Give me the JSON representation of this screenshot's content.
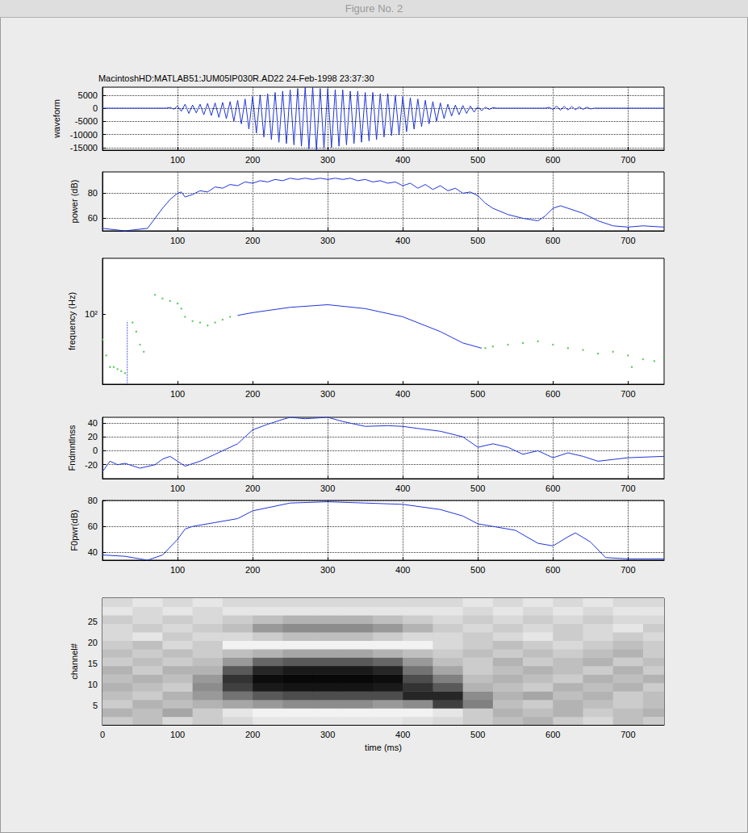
{
  "window": {
    "title": "Figure No. 2"
  },
  "chart_data": [
    {
      "type": "line",
      "title": "MacintoshHD:MATLAB51:JUM05IP030R.AD22 24-Feb-1998 23:37:30",
      "y_label": "waveform",
      "x": [
        0,
        85,
        90,
        95,
        100,
        105,
        110,
        115,
        120,
        125,
        130,
        135,
        140,
        145,
        150,
        155,
        160,
        165,
        170,
        175,
        180,
        185,
        190,
        195,
        200,
        205,
        210,
        215,
        220,
        225,
        230,
        235,
        240,
        245,
        250,
        255,
        260,
        265,
        270,
        275,
        280,
        285,
        290,
        295,
        300,
        305,
        310,
        315,
        320,
        325,
        330,
        335,
        340,
        345,
        350,
        355,
        360,
        365,
        370,
        375,
        380,
        385,
        390,
        395,
        400,
        405,
        410,
        415,
        420,
        425,
        430,
        435,
        440,
        445,
        450,
        455,
        460,
        465,
        470,
        475,
        480,
        485,
        490,
        495,
        500,
        505,
        510,
        515,
        520,
        525,
        590,
        595,
        600,
        605,
        610,
        615,
        620,
        625,
        630,
        635,
        640,
        645,
        650,
        655,
        748
      ],
      "values": [
        0,
        0,
        300,
        -400,
        800,
        -1200,
        1500,
        -2000,
        1200,
        -1800,
        1500,
        -2500,
        1800,
        -2800,
        2000,
        -3500,
        2200,
        -4000,
        2500,
        -5000,
        3000,
        -6000,
        3500,
        -8000,
        4500,
        -9500,
        5000,
        -11000,
        5500,
        -12000,
        6000,
        -13000,
        6500,
        -13500,
        7000,
        -14000,
        7500,
        -14500,
        8000,
        -15500,
        8000,
        -16000,
        7500,
        -15500,
        7500,
        -15000,
        7000,
        -14500,
        7000,
        -14000,
        6500,
        -13500,
        6500,
        -13000,
        6000,
        -12500,
        6000,
        -12000,
        5500,
        -11000,
        5500,
        -10500,
        5000,
        -10000,
        4500,
        -9000,
        4000,
        -8000,
        3500,
        -7000,
        3000,
        -6000,
        2500,
        -5000,
        2000,
        -4000,
        1500,
        -3000,
        1200,
        -2500,
        1000,
        -2000,
        800,
        -1500,
        600,
        -1000,
        400,
        -500,
        200,
        0,
        0,
        300,
        -500,
        800,
        -800,
        700,
        -700,
        600,
        -600,
        500,
        -500,
        400,
        -300,
        0,
        0
      ],
      "color": "#1f35d9",
      "xlim": [
        0,
        748
      ],
      "xticks": [
        100,
        200,
        300,
        400,
        500,
        600,
        700
      ],
      "ylim": [
        -16000,
        8000
      ],
      "yticks": [
        -15000,
        -10000,
        -5000,
        0,
        5000
      ],
      "grid": true
    },
    {
      "type": "line",
      "y_label": "power (dB)",
      "x": [
        0,
        30,
        60,
        70,
        80,
        90,
        100,
        105,
        110,
        120,
        130,
        140,
        150,
        160,
        170,
        180,
        190,
        200,
        210,
        220,
        230,
        240,
        250,
        260,
        270,
        280,
        290,
        300,
        310,
        320,
        330,
        340,
        350,
        360,
        370,
        380,
        390,
        400,
        410,
        420,
        430,
        440,
        450,
        460,
        470,
        480,
        490,
        500,
        510,
        520,
        540,
        560,
        580,
        590,
        600,
        610,
        620,
        640,
        660,
        680,
        700,
        720,
        748
      ],
      "values": [
        52,
        50,
        52,
        60,
        68,
        75,
        80,
        81,
        77,
        79,
        82,
        81,
        85,
        84,
        87,
        86,
        89,
        88,
        90,
        89,
        91,
        90,
        92,
        91,
        92,
        91,
        92,
        91,
        92,
        91,
        92,
        90,
        91,
        89,
        90,
        88,
        89,
        86,
        88,
        84,
        87,
        83,
        86,
        82,
        84,
        80,
        81,
        78,
        72,
        68,
        63,
        60,
        58,
        62,
        68,
        70,
        68,
        64,
        58,
        54,
        53,
        54,
        53
      ],
      "color": "#1f35d9",
      "xlim": [
        0,
        748
      ],
      "xticks": [
        100,
        200,
        300,
        400,
        500,
        600,
        700
      ],
      "ylim": [
        50,
        97
      ],
      "yticks": [
        60,
        80
      ],
      "grid": true
    },
    {
      "type": "line",
      "y_label": "frequency (Hz)",
      "log": "y",
      "series": [
        {
          "type": "line",
          "color": "#1f35d9",
          "line_style": "solid",
          "x": [
            180,
            200,
            250,
            300,
            350,
            400,
            450,
            480,
            505
          ],
          "values": [
            99,
            101,
            105,
            107,
            104,
            98,
            88,
            81,
            78
          ]
        },
        {
          "type": "line",
          "color": "#1f35d9",
          "line_style": "dotted",
          "x": [
            33,
            33
          ],
          "values": [
            60,
            95
          ]
        },
        {
          "type": "scatter",
          "color": "#44c044",
          "marker": "dot",
          "x": [
            0,
            5,
            10,
            15,
            20,
            25,
            30,
            40,
            45,
            50,
            55,
            70,
            80,
            90,
            100,
            105,
            110,
            120,
            130,
            140,
            150,
            160,
            170,
            510,
            520,
            540,
            560,
            580,
            600,
            620,
            640,
            660,
            680,
            700,
            705,
            720,
            735,
            748
          ],
          "values": [
            83,
            74,
            68,
            68,
            67,
            66,
            65,
            94,
            88,
            80,
            76,
            115,
            112,
            110,
            108,
            104,
            98,
            95,
            94,
            92,
            94,
            96,
            98,
            78,
            79,
            80,
            81,
            82,
            80,
            78,
            77,
            75,
            76,
            74,
            68,
            72,
            71,
            73
          ]
        }
      ],
      "xlim": [
        0,
        748
      ],
      "xticks": [
        100,
        200,
        300,
        400,
        500,
        600,
        700
      ],
      "ylim": [
        60,
        150
      ],
      "yticks": [
        {
          "value": 100,
          "label": "10²"
        }
      ],
      "grid": false
    },
    {
      "type": "line",
      "y_label": "Fndmntlnss",
      "x": [
        0,
        10,
        20,
        30,
        50,
        70,
        80,
        90,
        100,
        110,
        130,
        150,
        180,
        200,
        220,
        240,
        250,
        270,
        300,
        320,
        350,
        380,
        400,
        420,
        450,
        480,
        500,
        520,
        540,
        560,
        580,
        600,
        620,
        640,
        660,
        700,
        748
      ],
      "values": [
        -30,
        -15,
        -20,
        -18,
        -25,
        -20,
        -12,
        -8,
        -15,
        -22,
        -15,
        -5,
        10,
        30,
        38,
        45,
        48,
        46,
        48,
        42,
        35,
        36,
        35,
        32,
        28,
        20,
        5,
        10,
        5,
        -5,
        0,
        -10,
        -3,
        -8,
        -15,
        -10,
        -8
      ],
      "color": "#1f35d9",
      "xlim": [
        0,
        748
      ],
      "xticks": [
        100,
        200,
        300,
        400,
        500,
        600,
        700
      ],
      "ylim": [
        -40,
        48
      ],
      "yticks": [
        -20,
        0,
        20,
        40
      ],
      "grid": true
    },
    {
      "type": "line",
      "y_label": "F0pwr(dB)",
      "x": [
        0,
        30,
        50,
        60,
        80,
        100,
        110,
        120,
        150,
        180,
        200,
        250,
        300,
        350,
        400,
        450,
        480,
        500,
        520,
        550,
        580,
        600,
        620,
        630,
        650,
        670,
        700,
        748
      ],
      "values": [
        38,
        37,
        35,
        34,
        38,
        50,
        58,
        60,
        63,
        66,
        72,
        78,
        79,
        78,
        77,
        73,
        68,
        62,
        60,
        57,
        47,
        45,
        52,
        55,
        48,
        36,
        35,
        35
      ],
      "color": "#1f35d9",
      "xlim": [
        0,
        748
      ],
      "xticks": [
        100,
        200,
        300,
        400,
        500,
        600,
        700
      ],
      "ylim": [
        34,
        80
      ],
      "yticks": [
        40,
        60,
        80
      ],
      "grid": true
    },
    {
      "type": "heatmap",
      "y_label": "channel#",
      "x_label": "time (ms)",
      "x_edges": [
        0,
        40,
        80,
        120,
        160,
        200,
        240,
        280,
        320,
        360,
        400,
        440,
        480,
        520,
        560,
        600,
        640,
        680,
        720,
        748
      ],
      "y_edges": [
        0.5,
        2.5,
        4.5,
        6.5,
        8.5,
        10.5,
        12.5,
        14.5,
        16.5,
        18.5,
        20.5,
        22.5,
        24.5,
        26.5,
        28.5,
        30.5
      ],
      "cells": [
        [
          80,
          75,
          85,
          80,
          85,
          90,
          90,
          90,
          90,
          90,
          88,
          85,
          80,
          75,
          70,
          80,
          85,
          75,
          80
        ],
        [
          70,
          75,
          65,
          80,
          90,
          95,
          95,
          95,
          95,
          95,
          95,
          90,
          80,
          70,
          75,
          70,
          80,
          75,
          70
        ],
        [
          80,
          70,
          75,
          70,
          65,
          60,
          55,
          55,
          55,
          60,
          55,
          25,
          50,
          75,
          80,
          70,
          75,
          80,
          75
        ],
        [
          75,
          80,
          70,
          60,
          45,
          35,
          30,
          30,
          30,
          30,
          15,
          15,
          55,
          70,
          65,
          75,
          70,
          80,
          75
        ],
        [
          70,
          75,
          80,
          55,
          25,
          10,
          8,
          8,
          8,
          10,
          20,
          35,
          70,
          75,
          80,
          70,
          75,
          70,
          80
        ],
        [
          75,
          70,
          75,
          60,
          20,
          5,
          3,
          3,
          3,
          5,
          30,
          50,
          75,
          70,
          75,
          80,
          70,
          75,
          70
        ],
        [
          70,
          80,
          70,
          70,
          35,
          15,
          10,
          10,
          10,
          15,
          45,
          65,
          80,
          75,
          70,
          75,
          80,
          70,
          80
        ],
        [
          80,
          75,
          80,
          75,
          60,
          40,
          35,
          35,
          35,
          40,
          60,
          75,
          80,
          70,
          80,
          75,
          70,
          80,
          75
        ],
        [
          75,
          80,
          75,
          80,
          75,
          70,
          65,
          65,
          65,
          70,
          75,
          80,
          75,
          80,
          75,
          80,
          75,
          70,
          80
        ],
        [
          80,
          75,
          85,
          80,
          95,
          95,
          95,
          95,
          95,
          95,
          95,
          85,
          80,
          75,
          80,
          85,
          80,
          75,
          80
        ],
        [
          85,
          90,
          80,
          85,
          85,
          80,
          75,
          75,
          75,
          80,
          85,
          85,
          80,
          85,
          90,
          80,
          85,
          80,
          85
        ],
        [
          85,
          80,
          85,
          80,
          75,
          60,
          55,
          55,
          55,
          60,
          70,
          80,
          85,
          80,
          85,
          80,
          85,
          90,
          80
        ],
        [
          80,
          85,
          80,
          85,
          80,
          75,
          70,
          70,
          70,
          75,
          80,
          85,
          80,
          85,
          80,
          85,
          80,
          85,
          85
        ],
        [
          90,
          85,
          90,
          85,
          90,
          90,
          90,
          90,
          90,
          90,
          90,
          90,
          85,
          90,
          85,
          90,
          85,
          90,
          90
        ],
        [
          85,
          90,
          85,
          90,
          85,
          85,
          85,
          85,
          85,
          85,
          85,
          85,
          90,
          85,
          90,
          85,
          90,
          85,
          85
        ]
      ],
      "clim": [
        0,
        100
      ],
      "xlim": [
        0,
        748
      ],
      "xticks": [
        0,
        100,
        200,
        300,
        400,
        500,
        600,
        700
      ],
      "ylim": [
        0.5,
        30.5
      ],
      "yticks": [
        5,
        10,
        15,
        20,
        25
      ],
      "grid": false
    }
  ]
}
